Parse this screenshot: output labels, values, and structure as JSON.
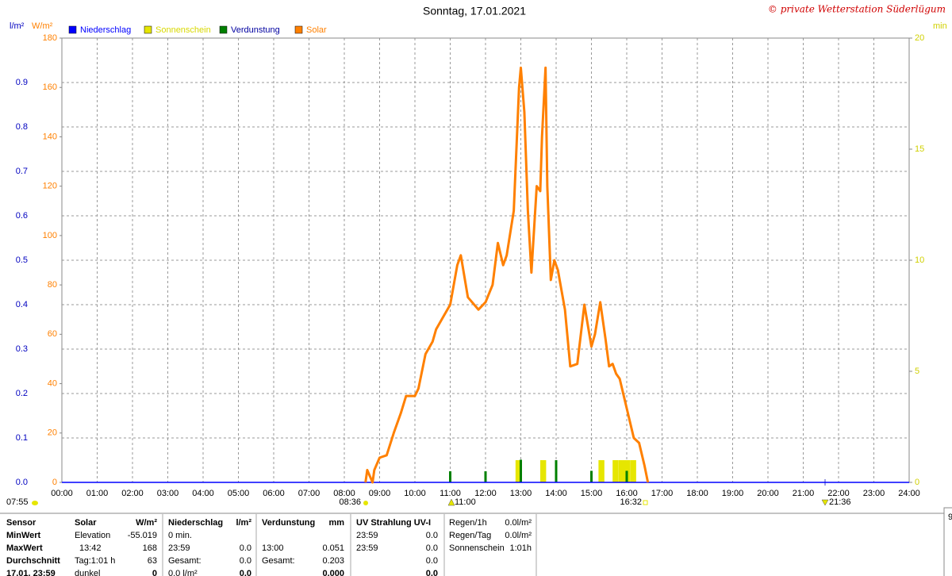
{
  "chart_data": {
    "type": "line",
    "title": "Sonntag, 17.01.2021",
    "copyright": "© private Wetterstation Süderlügum",
    "axis_labels": {
      "y2": "l/m²",
      "y": "W/m²",
      "y3": "min"
    },
    "xlim": [
      0,
      24
    ],
    "xticks": [
      {
        "value": 0,
        "label": "00:00"
      },
      {
        "value": 1,
        "label": "01:00"
      },
      {
        "value": 2,
        "label": "02:00"
      },
      {
        "value": 3,
        "label": "03:00"
      },
      {
        "value": 4,
        "label": "04:00"
      },
      {
        "value": 5,
        "label": "05:00"
      },
      {
        "value": 6,
        "label": "06:00"
      },
      {
        "value": 7,
        "label": "07:00"
      },
      {
        "value": 8,
        "label": "08:00"
      },
      {
        "value": 9,
        "label": "09:00"
      },
      {
        "value": 10,
        "label": "10:00"
      },
      {
        "value": 11,
        "label": "11:00"
      },
      {
        "value": 12,
        "label": "12:00"
      },
      {
        "value": 13,
        "label": "13:00"
      },
      {
        "value": 14,
        "label": "14:00"
      },
      {
        "value": 15,
        "label": "15:00"
      },
      {
        "value": 16,
        "label": "16:00"
      },
      {
        "value": 17,
        "label": "17:00"
      },
      {
        "value": 18,
        "label": "18:00"
      },
      {
        "value": 19,
        "label": "19:00"
      },
      {
        "value": 20,
        "label": "20:00"
      },
      {
        "value": 21,
        "label": "21:00"
      },
      {
        "value": 22,
        "label": "22:00"
      },
      {
        "value": 23,
        "label": "23:00"
      },
      {
        "value": 24,
        "label": "24:00"
      }
    ],
    "ylim": [
      0,
      180
    ],
    "yticks": [
      0,
      20,
      40,
      60,
      80,
      100,
      120,
      140,
      160,
      180
    ],
    "y2lim": [
      0,
      1
    ],
    "y2ticks": [
      {
        "value": 0,
        "label": "0.0"
      },
      {
        "value": 0.1,
        "label": "0.1"
      },
      {
        "value": 0.2,
        "label": "0.2"
      },
      {
        "value": 0.3,
        "label": "0.3"
      },
      {
        "value": 0.4,
        "label": "0.4"
      },
      {
        "value": 0.5,
        "label": "0.5"
      },
      {
        "value": 0.6,
        "label": "0.6"
      },
      {
        "value": 0.7,
        "label": "0.7"
      },
      {
        "value": 0.8,
        "label": "0.8"
      },
      {
        "value": 0.9,
        "label": "0.9"
      }
    ],
    "y3lim": [
      0,
      20
    ],
    "y3ticks": [
      0,
      5,
      10,
      15,
      20
    ],
    "grid": true,
    "series": [
      {
        "name": "Niederschlag",
        "color": "#0000ff",
        "kind": "line",
        "axis": "y2",
        "x": [
          0,
          24
        ],
        "values": [
          0,
          0
        ]
      },
      {
        "name": "Sonnenschein",
        "color": "#e6e600",
        "kind": "bar",
        "axis": "y3",
        "bar_width_h": 0.1667,
        "x": [
          12.85,
          13.55,
          15.2,
          15.6,
          15.77,
          15.93,
          16.1
        ],
        "values": [
          1,
          1,
          1,
          1,
          1,
          1,
          1
        ]
      },
      {
        "name": "Verdunstung",
        "color": "#008000",
        "kind": "spike",
        "axis": "y2",
        "x": [
          11,
          12,
          13,
          14,
          15,
          16
        ],
        "values": [
          0.025,
          0.025,
          0.051,
          0.05,
          0.026,
          0.026
        ]
      },
      {
        "name": "Solar",
        "color": "#ff8000",
        "kind": "line",
        "axis": "y",
        "x": [
          8.6,
          8.65,
          8.8,
          8.85,
          9.0,
          9.2,
          9.4,
          9.6,
          9.75,
          10.0,
          10.1,
          10.3,
          10.5,
          10.6,
          10.8,
          11.0,
          11.2,
          11.3,
          11.5,
          11.8,
          12.0,
          12.2,
          12.35,
          12.5,
          12.6,
          12.8,
          12.95,
          13.0,
          13.1,
          13.2,
          13.3,
          13.45,
          13.55,
          13.6,
          13.7,
          13.75,
          13.85,
          13.95,
          14.05,
          14.15,
          14.25,
          14.4,
          14.6,
          14.8,
          15.0,
          15.1,
          15.25,
          15.4,
          15.5,
          15.6,
          15.7,
          15.8,
          16.0,
          16.2,
          16.35,
          16.5,
          16.6
        ],
        "values": [
          0,
          5,
          0,
          5,
          10,
          11,
          20,
          28,
          35,
          35,
          38,
          52,
          57,
          62,
          67,
          72,
          88,
          92,
          75,
          70,
          73,
          80,
          97,
          88,
          92,
          110,
          160,
          168,
          150,
          110,
          85,
          120,
          118,
          140,
          168,
          120,
          82,
          90,
          86,
          78,
          70,
          47,
          48,
          72,
          55,
          60,
          73,
          58,
          47,
          48,
          44,
          42,
          30,
          18,
          16,
          7,
          0
        ]
      }
    ],
    "annotations": [
      "07:55",
      "08:36",
      "11:00",
      "16:32",
      "21:36"
    ]
  },
  "table": {
    "row_labels": [
      "Sensor",
      "MinWert",
      "MaxWert",
      "Durchschnitt",
      "17.01. 23:59"
    ],
    "blocks": [
      {
        "header": [
          "Solar",
          "W/m²"
        ],
        "rows": [
          [
            "Elevation",
            "-55.019"
          ],
          [
            "13:42",
            "168"
          ],
          [
            "Tag:1:01 h",
            "63"
          ],
          [
            "dunkel",
            "0"
          ]
        ]
      },
      {
        "header": [
          "Niederschlag",
          "l/m²"
        ],
        "rows": [
          [
            "0 min.",
            null
          ],
          [
            "23:59",
            "0.0"
          ],
          [
            "Gesamt:",
            "0.0"
          ],
          [
            "0.0 l/m²",
            "0.0"
          ]
        ]
      },
      {
        "header": [
          "Verdunstung",
          "mm"
        ],
        "rows": [
          [
            null,
            null
          ],
          [
            "13:00",
            "0.051"
          ],
          [
            "Gesamt:",
            "0.203"
          ],
          [
            null,
            "0.000"
          ]
        ]
      },
      {
        "header": [
          "UV Strahlung UV-I",
          null
        ],
        "rows": [
          [
            "23:59",
            "0.0"
          ],
          [
            "23:59",
            "0.0"
          ],
          [
            null,
            "0.0"
          ],
          [
            null,
            "0.0"
          ]
        ]
      }
    ],
    "extra": [
      [
        "Regen/1h",
        "0.0l/m²"
      ],
      [
        "Regen/Tag",
        "0.0l/m²"
      ],
      [
        "Sonnenschein",
        "1:01h"
      ]
    ],
    "corner": "9"
  }
}
